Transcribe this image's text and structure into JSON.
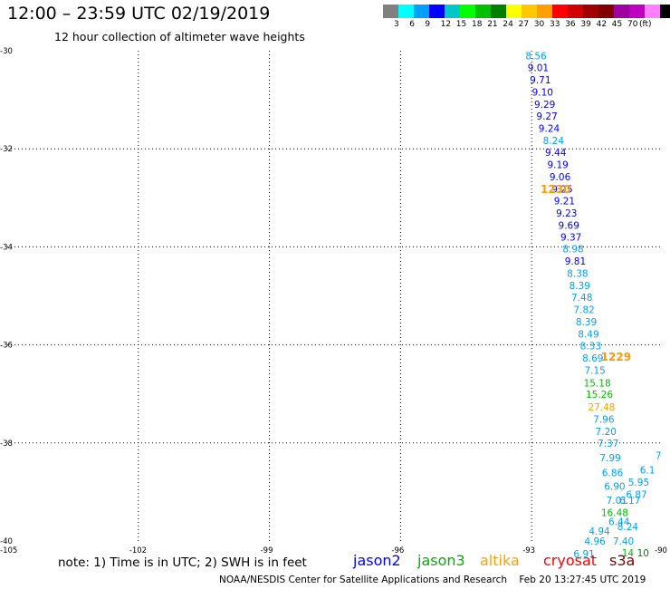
{
  "header": {
    "title": "12:00 – 23:59 UTC 02/19/2019",
    "subtitle": "12 hour collection of altimeter wave heights"
  },
  "legend": {
    "colors": [
      "#808080",
      "#00ffff",
      "#00a0ff",
      "#0000ff",
      "#00c8c8",
      "#00ff00",
      "#00c000",
      "#008000",
      "#ffff00",
      "#ffc800",
      "#ffa000",
      "#ff0000",
      "#d00000",
      "#a00000",
      "#800000",
      "#a000a0",
      "#c000c0",
      "#ff80ff",
      "#000000"
    ],
    "labels": [
      "3",
      "6",
      "9",
      "12",
      "15",
      "18",
      "21",
      "24",
      "27",
      "30",
      "33",
      "36",
      "39",
      "42",
      "45",
      "70"
    ],
    "unit": "(ft)"
  },
  "map": {
    "lat_labels": [
      "-30",
      "-32",
      "-34",
      "-36",
      "-38",
      "-40"
    ],
    "lon_labels": [
      "-105",
      "-102",
      "-99",
      "-96",
      "-93",
      "-90"
    ],
    "lat_range": [
      -40,
      -30
    ],
    "lon_range": [
      -105,
      -90
    ]
  },
  "observations": [
    {
      "v": "8.56",
      "lon": -92.9,
      "lat": -30.1,
      "c": "#00a0ff"
    },
    {
      "v": "9.01",
      "lon": -92.85,
      "lat": -30.34,
      "c": "#0000ff"
    },
    {
      "v": "9.71",
      "lon": -92.8,
      "lat": -30.59,
      "c": "#0000ff"
    },
    {
      "v": "9.10",
      "lon": -92.75,
      "lat": -30.84,
      "c": "#0000ff"
    },
    {
      "v": "9.29",
      "lon": -92.7,
      "lat": -31.09,
      "c": "#0000ff"
    },
    {
      "v": "9.27",
      "lon": -92.65,
      "lat": -31.33,
      "c": "#0000ff"
    },
    {
      "v": "9.24",
      "lon": -92.6,
      "lat": -31.58,
      "c": "#0000ff"
    },
    {
      "v": "8.24",
      "lon": -92.5,
      "lat": -31.83,
      "c": "#00a0ff"
    },
    {
      "v": "9.44",
      "lon": -92.45,
      "lat": -32.07,
      "c": "#0000ff"
    },
    {
      "v": "9.19",
      "lon": -92.4,
      "lat": -32.32,
      "c": "#0000ff"
    },
    {
      "v": "9.06",
      "lon": -92.35,
      "lat": -32.57,
      "c": "#0000ff"
    },
    {
      "v": "9.25",
      "lon": -92.3,
      "lat": -32.82,
      "c": "#0000ff"
    },
    {
      "v": "9.21",
      "lon": -92.25,
      "lat": -33.06,
      "c": "#0000ff"
    },
    {
      "v": "9.23",
      "lon": -92.2,
      "lat": -33.31,
      "c": "#0000ff"
    },
    {
      "v": "9.69",
      "lon": -92.15,
      "lat": -33.56,
      "c": "#0000ff"
    },
    {
      "v": "9.37",
      "lon": -92.1,
      "lat": -33.8,
      "c": "#0000ff"
    },
    {
      "v": "8.98",
      "lon": -92.05,
      "lat": -34.04,
      "c": "#00a0ff"
    },
    {
      "v": "9.81",
      "lon": -92.0,
      "lat": -34.29,
      "c": "#0000ff"
    },
    {
      "v": "8.38",
      "lon": -91.95,
      "lat": -34.54,
      "c": "#00a0ff"
    },
    {
      "v": "8.39",
      "lon": -91.9,
      "lat": -34.79,
      "c": "#00a0ff"
    },
    {
      "v": "7.48",
      "lon": -91.85,
      "lat": -35.03,
      "c": "#00a0ff"
    },
    {
      "v": "7.82",
      "lon": -91.8,
      "lat": -35.28,
      "c": "#00a0ff"
    },
    {
      "v": "8.39",
      "lon": -91.75,
      "lat": -35.53,
      "c": "#00a0ff"
    },
    {
      "v": "8.49",
      "lon": -91.7,
      "lat": -35.78,
      "c": "#00a0ff"
    },
    {
      "v": "8.33",
      "lon": -91.65,
      "lat": -36.02,
      "c": "#00a0ff"
    },
    {
      "v": "8.69",
      "lon": -91.6,
      "lat": -36.27,
      "c": "#00a0ff"
    },
    {
      "v": "7.15",
      "lon": -91.55,
      "lat": -36.52,
      "c": "#00a0ff"
    },
    {
      "v": "15.18",
      "lon": -91.5,
      "lat": -36.77,
      "c": "#00c000"
    },
    {
      "v": "15.26",
      "lon": -91.45,
      "lat": -37.01,
      "c": "#00c000"
    },
    {
      "v": "27.48",
      "lon": -91.4,
      "lat": -37.26,
      "c": "#ffa000"
    },
    {
      "v": "7.96",
      "lon": -91.35,
      "lat": -37.51,
      "c": "#00a0ff"
    },
    {
      "v": "7.20",
      "lon": -91.3,
      "lat": -37.76,
      "c": "#00a0ff"
    },
    {
      "v": "7.37",
      "lon": -91.25,
      "lat": -38.0,
      "c": "#00a0ff"
    },
    {
      "v": "7.99",
      "lon": -91.2,
      "lat": -38.3,
      "c": "#00a0ff"
    },
    {
      "v": "6.86",
      "lon": -91.15,
      "lat": -38.6,
      "c": "#00a0ff"
    },
    {
      "v": "6.90",
      "lon": -91.1,
      "lat": -38.88,
      "c": "#00a0ff"
    },
    {
      "v": "7.01",
      "lon": -91.05,
      "lat": -39.17,
      "c": "#00a0ff"
    },
    {
      "v": "16.48",
      "lon": -91.1,
      "lat": -39.42,
      "c": "#00c000"
    },
    {
      "v": "6.44",
      "lon": -91.0,
      "lat": -39.6,
      "c": "#00a0ff"
    },
    {
      "v": "4.94",
      "lon": -91.45,
      "lat": -39.8,
      "c": "#00a0ff"
    },
    {
      "v": "4.96",
      "lon": -91.55,
      "lat": -40.0,
      "c": "#00a0ff"
    },
    {
      "v": "6.91",
      "lon": -91.8,
      "lat": -40.26,
      "c": "#00a0ff"
    },
    {
      "v": "7.40",
      "lon": -90.9,
      "lat": -40.0,
      "c": "#00a0ff"
    },
    {
      "v": "8.24",
      "lon": -90.8,
      "lat": -39.7,
      "c": "#00a0ff"
    },
    {
      "v": "6.17",
      "lon": -90.75,
      "lat": -39.17,
      "c": "#00a0ff"
    },
    {
      "v": "6.87",
      "lon": -90.6,
      "lat": -39.05,
      "c": "#00a0ff"
    },
    {
      "v": "5.95",
      "lon": -90.55,
      "lat": -38.8,
      "c": "#00a0ff"
    },
    {
      "v": "6.1",
      "lon": -90.35,
      "lat": -38.55,
      "c": "#00a0ff"
    },
    {
      "v": "7",
      "lon": -90.1,
      "lat": -38.25,
      "c": "#00a0ff"
    },
    {
      "v": "14",
      "lon": -90.8,
      "lat": -40.24,
      "c": "#00c000"
    },
    {
      "v": "10",
      "lon": -90.45,
      "lat": -40.24,
      "c": "#008000"
    }
  ],
  "pass_times": [
    {
      "t": "1230",
      "lon": -92.45,
      "lat": -32.83,
      "c": "#ff9900"
    },
    {
      "t": "1229",
      "lon": -91.07,
      "lat": -36.25,
      "c": "#ff9900"
    }
  ],
  "bottom": {
    "note": "note:  1) Time is in UTC;  2) SWH is in feet",
    "satellites": [
      {
        "name": "jason2",
        "color": "#0000ff"
      },
      {
        "name": "jason3",
        "color": "#00b000"
      },
      {
        "name": "altika",
        "color": "#ffa000"
      },
      {
        "name": "cryosat",
        "color": "#ff0000"
      },
      {
        "name": "s3a",
        "color": "#800000"
      }
    ],
    "footer": "NOAA/NESDIS Center for Satellite Applications and Research    Feb 20 13:27:45 UTC 2019"
  }
}
